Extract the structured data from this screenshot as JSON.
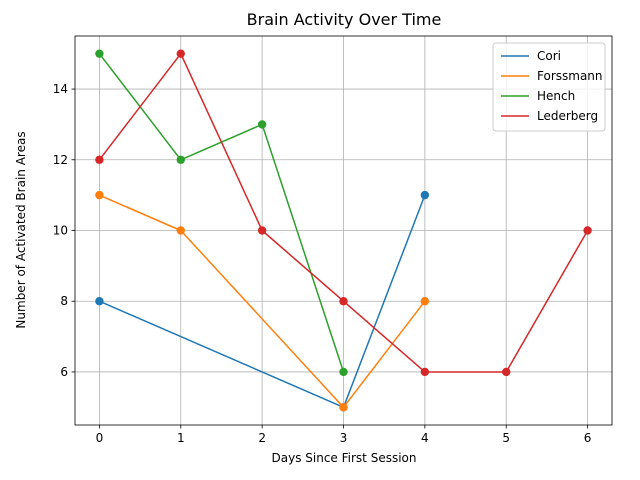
{
  "chart_data": {
    "type": "line",
    "title": "Brain Activity Over Time",
    "xlabel": "Days Since First Session",
    "ylabel": "Number of Activated Brain Areas",
    "xlim": [
      -0.3,
      6.3
    ],
    "ylim": [
      4.5,
      15.5
    ],
    "xticks": [
      0,
      1,
      2,
      3,
      4,
      5,
      6
    ],
    "yticks": [
      6,
      8,
      10,
      12,
      14
    ],
    "grid": true,
    "legend_position": "top-right",
    "series": [
      {
        "name": "Cori",
        "color": "#1f77b4",
        "x": [
          0,
          3,
          4
        ],
        "y": [
          8,
          5,
          11
        ]
      },
      {
        "name": "Forssmann",
        "color": "#ff7f0e",
        "x": [
          0,
          1,
          3,
          4
        ],
        "y": [
          11,
          10,
          5,
          8
        ]
      },
      {
        "name": "Hench",
        "color": "#2ca02c",
        "x": [
          0,
          1,
          2,
          3
        ],
        "y": [
          15,
          12,
          13,
          6
        ]
      },
      {
        "name": "Lederberg",
        "color": "#d62728",
        "x": [
          0,
          1,
          2,
          3,
          4,
          5,
          6
        ],
        "y": [
          12,
          15,
          10,
          8,
          6,
          6,
          10
        ]
      }
    ]
  }
}
